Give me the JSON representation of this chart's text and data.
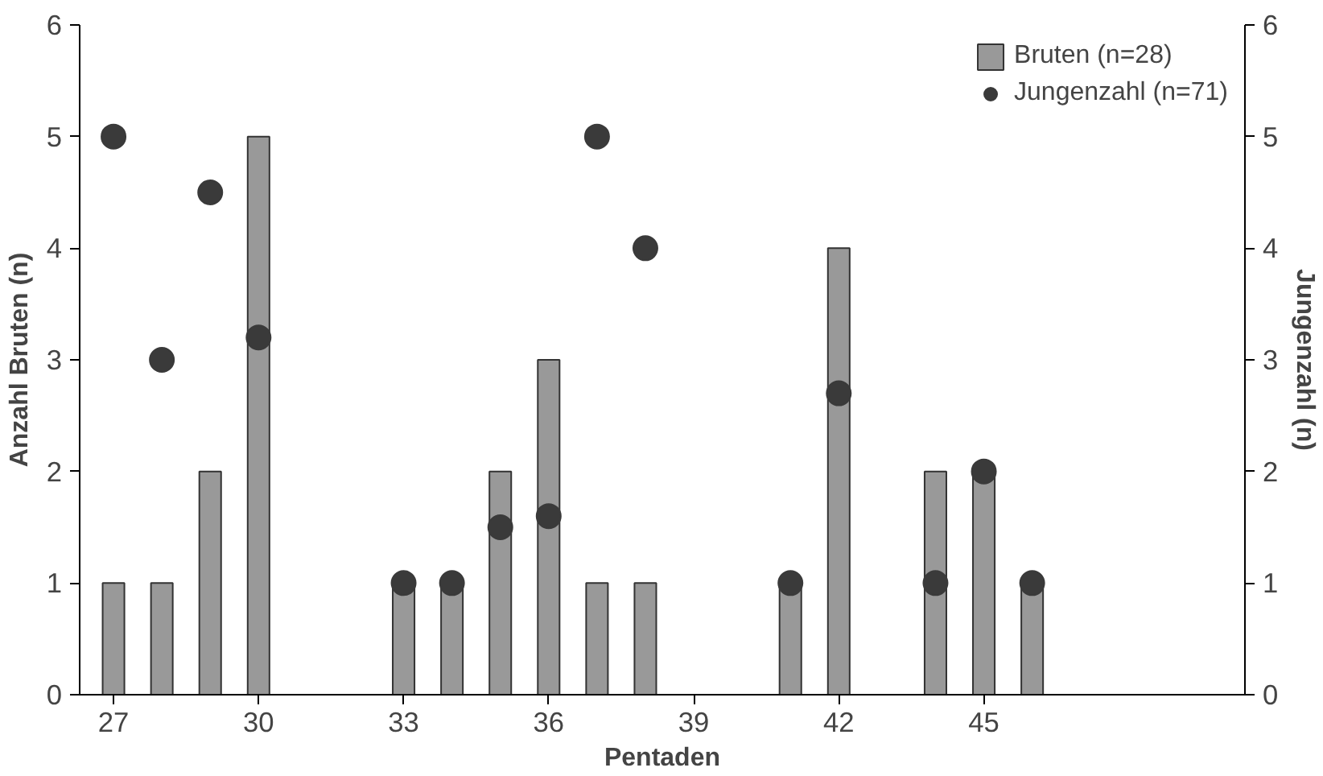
{
  "chart_data": {
    "type": "bar",
    "xlabel": "Pentaden",
    "ylabel": "Anzahl Bruten (n)",
    "y2label": "Jungenzahl (n)",
    "x": [
      27,
      28,
      29,
      30,
      33,
      34,
      35,
      36,
      37,
      38,
      41,
      42,
      44,
      45,
      46
    ],
    "series": [
      {
        "name": "Bruten (n=28)",
        "color": "#999999",
        "values": [
          1,
          1,
          2,
          5,
          1,
          1,
          2,
          3,
          1,
          1,
          1,
          4,
          2,
          2,
          1
        ]
      },
      {
        "name": "Jungenzahl (n=71)",
        "type": "scatter",
        "axis": "y2",
        "color": "#3a3a3a",
        "values": [
          5,
          3,
          4.5,
          3.2,
          1,
          1,
          1.5,
          1.6,
          5,
          4,
          1,
          2.7,
          1,
          2,
          1
        ]
      }
    ],
    "xlim": [
      26.3,
      50.4
    ],
    "xticks": [
      27,
      30,
      33,
      36,
      39,
      42,
      45
    ],
    "ylim": [
      0,
      6
    ],
    "yticks": [
      0,
      1,
      2,
      3,
      4,
      5,
      6
    ],
    "y2lim": [
      0,
      6
    ],
    "y2ticks": [
      0,
      1,
      2,
      3,
      4,
      5,
      6
    ],
    "grid": false,
    "legend": "top right",
    "marker": "circle"
  }
}
